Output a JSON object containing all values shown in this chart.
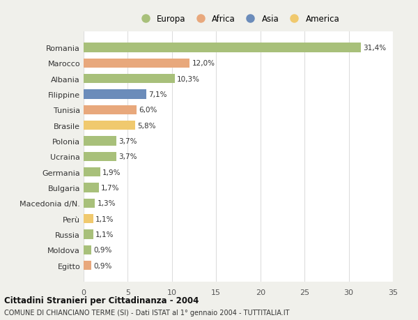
{
  "countries": [
    "Romania",
    "Marocco",
    "Albania",
    "Filippine",
    "Tunisia",
    "Brasile",
    "Polonia",
    "Ucraina",
    "Germania",
    "Bulgaria",
    "Macedonia d/N.",
    "Perù",
    "Russia",
    "Moldova",
    "Egitto"
  ],
  "values": [
    31.4,
    12.0,
    10.3,
    7.1,
    6.0,
    5.8,
    3.7,
    3.7,
    1.9,
    1.7,
    1.3,
    1.1,
    1.1,
    0.9,
    0.9
  ],
  "labels": [
    "31,4%",
    "12,0%",
    "10,3%",
    "7,1%",
    "6,0%",
    "5,8%",
    "3,7%",
    "3,7%",
    "1,9%",
    "1,7%",
    "1,3%",
    "1,1%",
    "1,1%",
    "0,9%",
    "0,9%"
  ],
  "continents": [
    "Europa",
    "Africa",
    "Europa",
    "Asia",
    "Africa",
    "America",
    "Europa",
    "Europa",
    "Europa",
    "Europa",
    "Europa",
    "America",
    "Europa",
    "Europa",
    "Africa"
  ],
  "colors": {
    "Europa": "#a8c07a",
    "Africa": "#e8a87c",
    "Asia": "#6b8cba",
    "America": "#f0c96e"
  },
  "legend_order": [
    "Europa",
    "Africa",
    "Asia",
    "America"
  ],
  "title1": "Cittadini Stranieri per Cittadinanza - 2004",
  "title2": "COMUNE DI CHIANCIANO TERME (SI) - Dati ISTAT al 1° gennaio 2004 - TUTTITALIA.IT",
  "xlim": [
    0,
    35
  ],
  "xticks": [
    0,
    5,
    10,
    15,
    20,
    25,
    30,
    35
  ],
  "background_color": "#f0f0eb",
  "plot_background": "#ffffff",
  "grid_color": "#dddddd"
}
